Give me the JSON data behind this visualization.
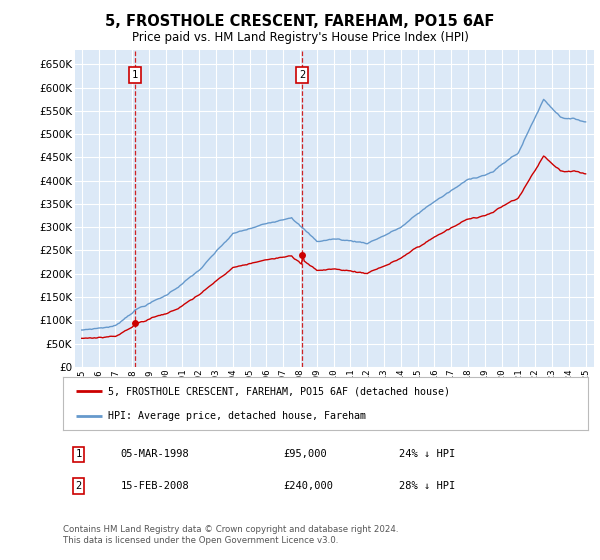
{
  "title": "5, FROSTHOLE CRESCENT, FAREHAM, PO15 6AF",
  "subtitle": "Price paid vs. HM Land Registry's House Price Index (HPI)",
  "ytick_values": [
    0,
    50000,
    100000,
    150000,
    200000,
    250000,
    300000,
    350000,
    400000,
    450000,
    500000,
    550000,
    600000,
    650000
  ],
  "ylim": [
    0,
    680000
  ],
  "background_color": "#ffffff",
  "plot_bg_color": "#dce9f7",
  "grid_color": "#ffffff",
  "hpi_color": "#6699cc",
  "price_color": "#cc0000",
  "vline_color": "#cc0000",
  "sale1_year": 1998.17,
  "sale1_price": 95000,
  "sale2_year": 2008.12,
  "sale2_price": 240000,
  "legend_label1": "5, FROSTHOLE CRESCENT, FAREHAM, PO15 6AF (detached house)",
  "legend_label2": "HPI: Average price, detached house, Fareham",
  "footer": "Contains HM Land Registry data © Crown copyright and database right 2024.\nThis data is licensed under the Open Government Licence v3.0."
}
